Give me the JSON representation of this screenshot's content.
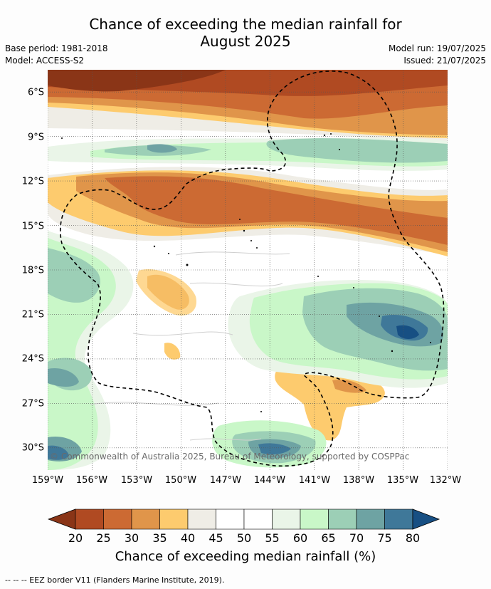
{
  "title_line1": "Chance of exceeding the median rainfall for",
  "title_line2": "August 2025",
  "base_period": "Base period: 1981-2018",
  "model": "Model: ACCESS-S2",
  "model_run": "Model run: 19/07/2025",
  "issued": "Issued: 21/07/2025",
  "lat_labels": [
    "6°S",
    "9°S",
    "12°S",
    "15°S",
    "18°S",
    "21°S",
    "24°S",
    "27°S",
    "30°S"
  ],
  "lon_labels": [
    "159°W",
    "156°W",
    "153°W",
    "150°W",
    "147°W",
    "144°W",
    "141°W",
    "138°W",
    "135°W",
    "132°W"
  ],
  "copyright": "© Commonwealth of Australia 2025, Bureau of Meteorology, supported by COSPPac",
  "colorbar": {
    "ticks": [
      "20",
      "25",
      "30",
      "35",
      "40",
      "45",
      "50",
      "55",
      "60",
      "65",
      "70",
      "75",
      "80"
    ],
    "colors": [
      "#8a3517",
      "#b04a22",
      "#cc6a33",
      "#e0954a",
      "#fdcb6e",
      "#efede6",
      "#ffffff",
      "#ffffff",
      "#eaf5e8",
      "#c9f7c8",
      "#9ccfb6",
      "#6ea3a3",
      "#3f7899",
      "#174f83"
    ],
    "label": "Chance of exceeding median rainfall (%)"
  },
  "footnote": "--  --  -- EEZ border V11 (Flanders Marine Institute, 2019)."
}
